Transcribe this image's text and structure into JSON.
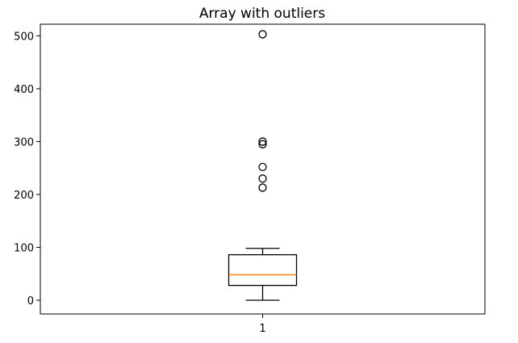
{
  "chart_data": {
    "type": "box",
    "title": "Array with outliers",
    "xlabel": "",
    "ylabel": "",
    "ylim": [
      -26,
      522
    ],
    "yticks": [
      0,
      100,
      200,
      300,
      400,
      500
    ],
    "xtick_labels": [
      "1"
    ],
    "grid": false,
    "boxes": [
      {
        "label": "1",
        "whisker_low": 0,
        "q1": 28,
        "median": 48,
        "q3": 86,
        "whisker_high": 98,
        "outliers": [
          213,
          230,
          252,
          295,
          300,
          503
        ]
      }
    ],
    "colors": {
      "box": "#000000",
      "median": "#ff7f0e",
      "outlier": "#000000"
    }
  }
}
